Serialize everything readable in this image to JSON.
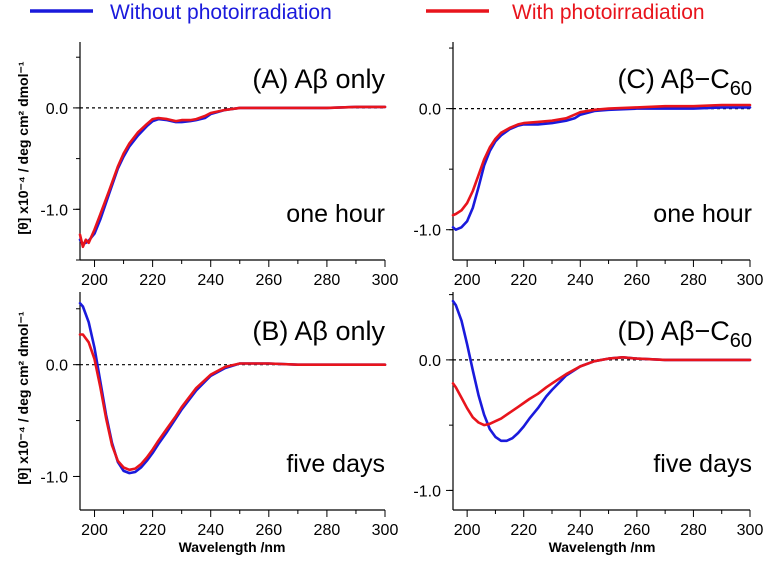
{
  "legend": {
    "without": {
      "label": "Without photoirradiation",
      "color": "#1a1adc"
    },
    "with": {
      "label": "With photoirradiation",
      "color": "#e8141c"
    }
  },
  "y_axis_label": "[θ] x10⁻⁴ / deg cm² dmol⁻¹",
  "chart_data": [
    {
      "type": "line",
      "panel": "A",
      "title": "(A) Aβ only",
      "note": "one hour",
      "xlabel": "",
      "ylabel": "[θ] x10⁻⁴ / deg cm² dmol⁻¹",
      "xlim": [
        195,
        300
      ],
      "ylim": [
        -1.5,
        0.65
      ],
      "xticks": [
        "200",
        "220",
        "240",
        "260",
        "280",
        "300"
      ],
      "yticks": [
        "0.0",
        "-1.0"
      ],
      "zero_line": "dotted",
      "series": [
        {
          "name": "Without photoirradiation",
          "color": "#1a1adc",
          "x": [
            195,
            196,
            197,
            198,
            200,
            202,
            205,
            208,
            210,
            212,
            215,
            218,
            220,
            222,
            225,
            228,
            230,
            233,
            235,
            238,
            240,
            245,
            250,
            260,
            270,
            280,
            290,
            300
          ],
          "y": [
            -1.3,
            -1.34,
            -1.33,
            -1.31,
            -1.24,
            -1.1,
            -0.85,
            -0.6,
            -0.48,
            -0.38,
            -0.27,
            -0.18,
            -0.13,
            -0.11,
            -0.12,
            -0.14,
            -0.14,
            -0.13,
            -0.12,
            -0.1,
            -0.06,
            -0.02,
            0.0,
            0.0,
            0.0,
            0.0,
            0.01,
            0.01
          ]
        },
        {
          "name": "With photoirradiation",
          "color": "#e8141c",
          "x": [
            195,
            196,
            197,
            198,
            200,
            202,
            205,
            208,
            210,
            212,
            215,
            218,
            220,
            222,
            225,
            228,
            230,
            233,
            235,
            238,
            240,
            245,
            250,
            260,
            270,
            280,
            290,
            300
          ],
          "y": [
            -1.25,
            -1.37,
            -1.3,
            -1.33,
            -1.2,
            -1.05,
            -0.82,
            -0.58,
            -0.45,
            -0.35,
            -0.24,
            -0.16,
            -0.11,
            -0.1,
            -0.11,
            -0.13,
            -0.12,
            -0.12,
            -0.11,
            -0.08,
            -0.05,
            -0.02,
            0.0,
            0.0,
            0.0,
            0.0,
            0.01,
            0.01
          ]
        }
      ]
    },
    {
      "type": "line",
      "panel": "B",
      "title": "(B) Aβ only",
      "note": "five days",
      "xlabel": "Wavelength /nm",
      "ylabel": "[θ] x10⁻⁴ / deg cm² dmol⁻¹",
      "xlim": [
        195,
        300
      ],
      "ylim": [
        -1.3,
        0.65
      ],
      "xticks": [
        "200",
        "220",
        "240",
        "260",
        "280",
        "300"
      ],
      "yticks": [
        "0.0",
        "-1.0"
      ],
      "zero_line": "dotted",
      "series": [
        {
          "name": "Without photoirradiation",
          "color": "#1a1adc",
          "x": [
            195,
            196,
            198,
            200,
            202,
            204,
            206,
            208,
            210,
            212,
            214,
            216,
            218,
            220,
            222,
            225,
            228,
            230,
            235,
            240,
            245,
            250,
            255,
            260,
            270,
            280,
            290,
            300
          ],
          "y": [
            0.55,
            0.52,
            0.38,
            0.15,
            -0.15,
            -0.45,
            -0.7,
            -0.87,
            -0.95,
            -0.97,
            -0.96,
            -0.92,
            -0.86,
            -0.79,
            -0.71,
            -0.6,
            -0.48,
            -0.4,
            -0.23,
            -0.1,
            -0.03,
            0.01,
            0.01,
            0.01,
            0.0,
            0.0,
            0.0,
            0.0
          ]
        },
        {
          "name": "With photoirradiation",
          "color": "#e8141c",
          "x": [
            195,
            196,
            198,
            200,
            202,
            204,
            206,
            208,
            210,
            212,
            214,
            216,
            218,
            220,
            222,
            225,
            228,
            230,
            235,
            240,
            245,
            250,
            255,
            260,
            270,
            280,
            290,
            300
          ],
          "y": [
            0.27,
            0.27,
            0.2,
            0.05,
            -0.2,
            -0.48,
            -0.72,
            -0.86,
            -0.92,
            -0.94,
            -0.93,
            -0.89,
            -0.83,
            -0.76,
            -0.68,
            -0.57,
            -0.46,
            -0.38,
            -0.21,
            -0.09,
            -0.02,
            0.01,
            0.01,
            0.01,
            0.0,
            0.0,
            0.0,
            0.0
          ]
        }
      ]
    },
    {
      "type": "line",
      "panel": "C",
      "title": "(C) Aβ−C",
      "title_sub": "60",
      "note": "one hour",
      "xlabel": "",
      "ylabel": "",
      "xlim": [
        195,
        300
      ],
      "ylim": [
        -1.25,
        0.55
      ],
      "xticks": [
        "200",
        "220",
        "240",
        "260",
        "280",
        "300"
      ],
      "yticks": [
        "0.0",
        "-1.0"
      ],
      "zero_line": "dotted",
      "series": [
        {
          "name": "Without photoirradiation",
          "color": "#1a1adc",
          "x": [
            195,
            196,
            198,
            200,
            202,
            204,
            206,
            208,
            210,
            212,
            215,
            218,
            220,
            225,
            230,
            235,
            238,
            240,
            245,
            250,
            260,
            270,
            280,
            290,
            300
          ],
          "y": [
            -0.98,
            -1.0,
            -0.98,
            -0.93,
            -0.82,
            -0.65,
            -0.47,
            -0.35,
            -0.27,
            -0.22,
            -0.17,
            -0.14,
            -0.13,
            -0.13,
            -0.12,
            -0.1,
            -0.08,
            -0.05,
            -0.02,
            -0.01,
            0.0,
            0.0,
            0.0,
            0.01,
            0.01
          ]
        },
        {
          "name": "With photoirradiation",
          "color": "#e8141c",
          "x": [
            195,
            196,
            198,
            200,
            202,
            204,
            206,
            208,
            210,
            212,
            215,
            218,
            220,
            225,
            230,
            235,
            238,
            240,
            245,
            250,
            260,
            270,
            280,
            290,
            300
          ],
          "y": [
            -0.88,
            -0.87,
            -0.84,
            -0.78,
            -0.68,
            -0.55,
            -0.42,
            -0.32,
            -0.25,
            -0.2,
            -0.16,
            -0.13,
            -0.12,
            -0.11,
            -0.1,
            -0.08,
            -0.05,
            -0.03,
            -0.01,
            0.0,
            0.01,
            0.02,
            0.02,
            0.03,
            0.03
          ]
        }
      ]
    },
    {
      "type": "line",
      "panel": "D",
      "title": "(D) Aβ−C",
      "title_sub": "60",
      "note": "five days",
      "xlabel": "Wavelength /nm",
      "ylabel": "",
      "xlim": [
        195,
        300
      ],
      "ylim": [
        -1.15,
        0.52
      ],
      "xticks": [
        "200",
        "220",
        "240",
        "260",
        "280",
        "300"
      ],
      "yticks": [
        "0.0",
        "-1.0"
      ],
      "zero_line": "dotted",
      "series": [
        {
          "name": "Without photoirradiation",
          "color": "#1a1adc",
          "x": [
            195,
            196,
            198,
            200,
            202,
            204,
            206,
            208,
            210,
            212,
            214,
            216,
            218,
            220,
            222,
            225,
            228,
            230,
            235,
            240,
            245,
            250,
            255,
            260,
            270,
            280,
            290,
            300
          ],
          "y": [
            0.45,
            0.42,
            0.3,
            0.12,
            -0.08,
            -0.27,
            -0.42,
            -0.53,
            -0.59,
            -0.62,
            -0.62,
            -0.6,
            -0.56,
            -0.51,
            -0.45,
            -0.37,
            -0.28,
            -0.23,
            -0.12,
            -0.05,
            -0.01,
            0.01,
            0.02,
            0.01,
            0.0,
            0.0,
            0.0,
            0.0
          ]
        },
        {
          "name": "With photoirradiation",
          "color": "#e8141c",
          "x": [
            195,
            196,
            198,
            200,
            202,
            204,
            206,
            208,
            210,
            212,
            214,
            216,
            218,
            220,
            222,
            225,
            228,
            230,
            235,
            240,
            245,
            250,
            255,
            260,
            270,
            280,
            290,
            300
          ],
          "y": [
            -0.18,
            -0.21,
            -0.29,
            -0.37,
            -0.44,
            -0.48,
            -0.5,
            -0.49,
            -0.47,
            -0.45,
            -0.42,
            -0.39,
            -0.36,
            -0.33,
            -0.3,
            -0.26,
            -0.21,
            -0.18,
            -0.11,
            -0.05,
            -0.01,
            0.01,
            0.02,
            0.01,
            0.0,
            0.0,
            0.0,
            0.0
          ]
        }
      ]
    }
  ]
}
